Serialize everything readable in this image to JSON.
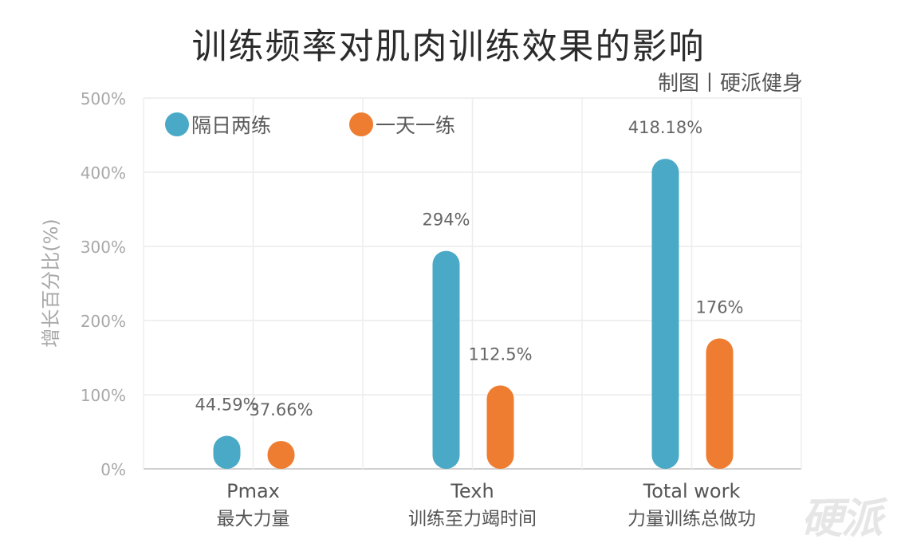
{
  "chart_data": {
    "type": "bar",
    "title": "训练频率对肌肉训练效果的影响",
    "subtitle": "制图丨硬派健身",
    "ylabel": "增长百分比(%)",
    "ylim": [
      0,
      500
    ],
    "yticks": [
      0,
      100,
      200,
      300,
      400,
      500
    ],
    "ytick_labels": [
      "0%",
      "100%",
      "200%",
      "300%",
      "400%",
      "500%"
    ],
    "categories": [
      {
        "en": "Pmax",
        "zh": "最大力量"
      },
      {
        "en": "Texh",
        "zh": "训练至力竭时间"
      },
      {
        "en": "Total work",
        "zh": "力量训练总做功"
      }
    ],
    "series": [
      {
        "name": "隔日两练",
        "color": "#4aa9c6",
        "values": [
          44.59,
          294,
          418.18
        ],
        "labels": [
          "44.59%",
          "294%",
          "418.18%"
        ]
      },
      {
        "name": "一天一练",
        "color": "#ef7d31",
        "values": [
          37.66,
          112.5,
          176
        ],
        "labels": [
          "37.66%",
          "112.5%",
          "176%"
        ]
      }
    ],
    "grid": true,
    "legend_position": "top-left"
  },
  "watermark": "硬派"
}
